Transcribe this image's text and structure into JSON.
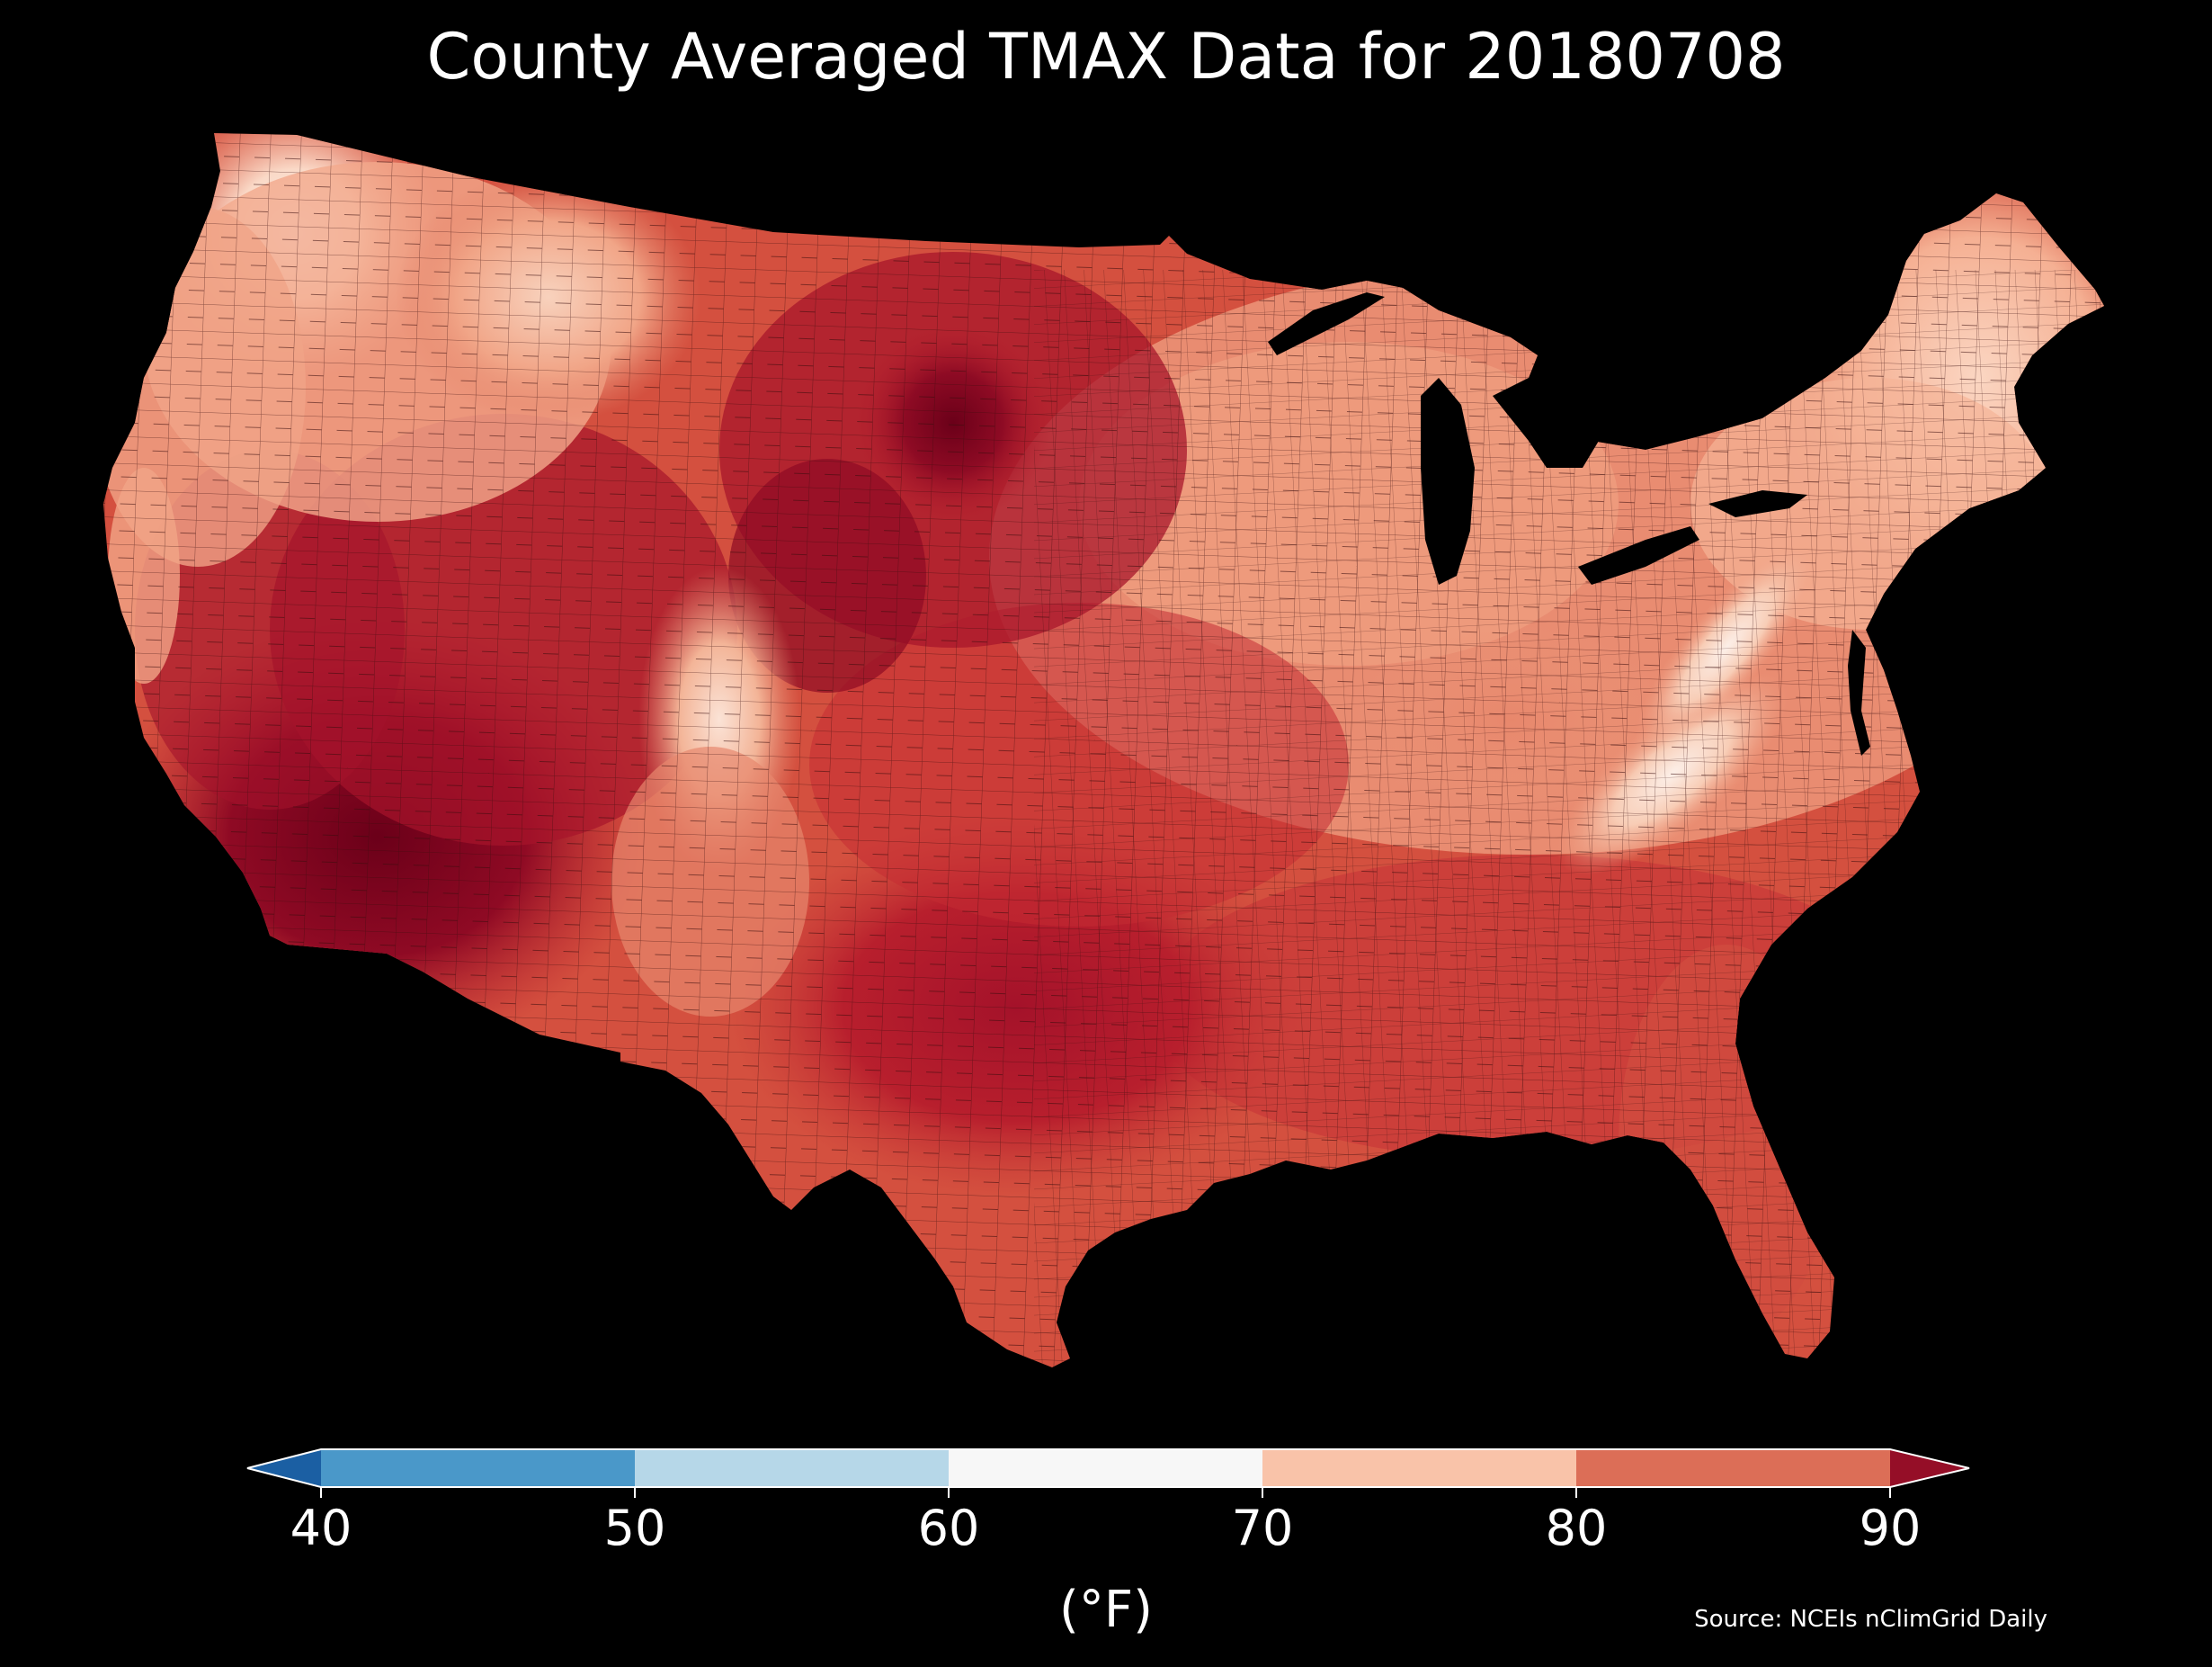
{
  "title": "County Averaged TMAX Data for 20180708",
  "source": "Source: NCEIs nClimGrid Daily",
  "colorbar": {
    "label": "(°F)",
    "extend": "both",
    "ticks": [
      "40",
      "50",
      "60",
      "70",
      "80",
      "90"
    ],
    "bins": [
      {
        "from": 40,
        "to": 50,
        "color": "#4a98c9"
      },
      {
        "from": 50,
        "to": 60,
        "color": "#b6d7e8"
      },
      {
        "from": 60,
        "to": 70,
        "color": "#f7f7f7"
      },
      {
        "from": 70,
        "to": 80,
        "color": "#f9c3a9"
      },
      {
        "from": 80,
        "to": 90,
        "color": "#dc6e57"
      }
    ],
    "under_color": "#1b5fa3",
    "over_color": "#950e27"
  },
  "map": {
    "region": "Contiguous United States, county level",
    "variable": "TMAX",
    "background": "#000000",
    "county_edge_color": "#2a0a0a"
  }
}
